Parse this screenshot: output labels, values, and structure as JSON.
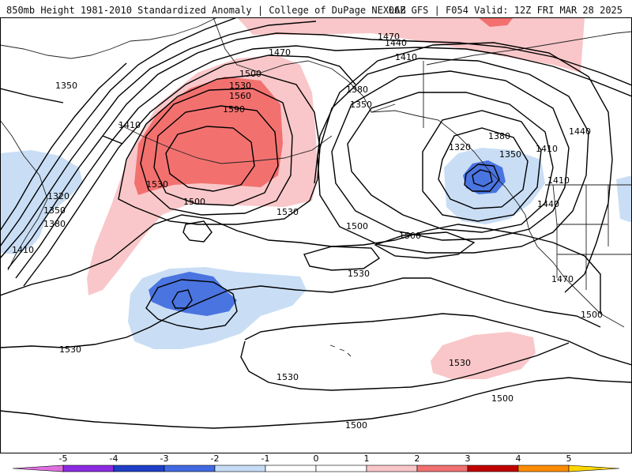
{
  "header": {
    "title": "850mb Height 1981-2010 Standardized Anomaly | College of DuPage NEXLAB",
    "run_info": "06Z GFS | F054 Valid: 12Z FRI MAR 28 2025"
  },
  "contour_labels": [
    "1350",
    "1410",
    "1320",
    "1350",
    "1380",
    "1410",
    "1470",
    "1500",
    "1530",
    "1560",
    "1590",
    "1530",
    "1500",
    "1530",
    "1470",
    "1440",
    "1410",
    "1380",
    "1350",
    "1320",
    "1380",
    "1350",
    "1410",
    "1410",
    "1440",
    "1440",
    "1500",
    "1500",
    "1530",
    "1530",
    "1530",
    "1530",
    "1470",
    "1500",
    "1500",
    "1500"
  ],
  "legend": {
    "ticks": [
      "-5",
      "-4",
      "-3",
      "-2",
      "-1",
      "0",
      "1",
      "2",
      "3",
      "4",
      "5"
    ],
    "colors": [
      "#e070e0",
      "#8a2be2",
      "#1f3fc8",
      "#4169e1",
      "#c6dcf6",
      "#ffffff",
      "#ffffff",
      "#f8c6c8",
      "#f07070",
      "#c00000",
      "#ff8c00",
      "#ffd700"
    ]
  },
  "anomaly_colors": {
    "pos1": "#f9c7c9",
    "pos2": "#f2716f",
    "neg1": "#c9def5",
    "neg2": "#4a74e0"
  }
}
